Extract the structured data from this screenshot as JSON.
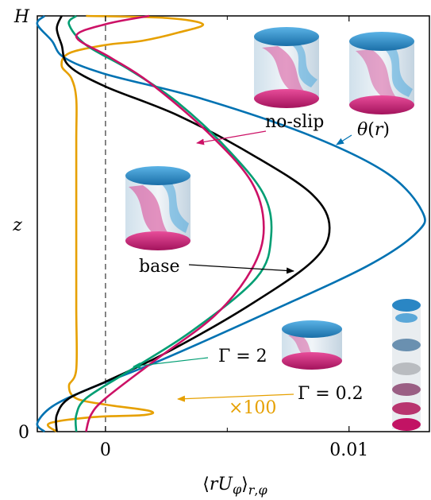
{
  "chart_data": {
    "type": "line",
    "xlabel": "⟨rU_φ⟩_{r,φ}",
    "ylabel": "z",
    "xlim": [
      -0.0028,
      0.0133
    ],
    "ylim": [
      0,
      1
    ],
    "x_ticks": [
      0,
      0.01
    ],
    "x_tick_labels": [
      "0",
      "0.01"
    ],
    "y_ticks": [
      0,
      1
    ],
    "y_tick_labels": [
      "0",
      "H"
    ],
    "zero_line": "dashed",
    "grid": false,
    "legend": "none",
    "series": [
      {
        "name": "θ(r)",
        "color": "#0072b2",
        "points": [
          [
            -0.0025,
            0.0
          ],
          [
            -0.0028,
            0.02
          ],
          [
            -0.0022,
            0.06
          ],
          [
            -0.0008,
            0.1
          ],
          [
            0.0022,
            0.17
          ],
          [
            0.0068,
            0.29
          ],
          [
            0.0108,
            0.4
          ],
          [
            0.0128,
            0.48
          ],
          [
            0.013,
            0.53
          ],
          [
            0.0116,
            0.62
          ],
          [
            0.0085,
            0.71
          ],
          [
            0.004,
            0.8
          ],
          [
            0.0,
            0.86
          ],
          [
            -0.0017,
            0.9
          ],
          [
            -0.0022,
            0.94
          ],
          [
            -0.0028,
            0.98
          ],
          [
            -0.0025,
            1.0
          ]
        ]
      },
      {
        "name": "base",
        "color": "#000000",
        "points": [
          [
            -0.002,
            0.0
          ],
          [
            -0.002,
            0.04
          ],
          [
            -0.0015,
            0.08
          ],
          [
            0.0,
            0.12
          ],
          [
            0.0025,
            0.19
          ],
          [
            0.0058,
            0.3
          ],
          [
            0.0085,
            0.41
          ],
          [
            0.0092,
            0.49
          ],
          [
            0.0085,
            0.57
          ],
          [
            0.0062,
            0.66
          ],
          [
            0.003,
            0.76
          ],
          [
            0.0,
            0.83
          ],
          [
            -0.0015,
            0.88
          ],
          [
            -0.0018,
            0.93
          ],
          [
            -0.002,
            0.97
          ],
          [
            -0.0018,
            1.0
          ]
        ]
      },
      {
        "name": "Γ = 2",
        "color": "#009e73",
        "points": [
          [
            -0.0012,
            0.0
          ],
          [
            -0.0012,
            0.04
          ],
          [
            -0.0008,
            0.08
          ],
          [
            0.0008,
            0.14
          ],
          [
            0.0035,
            0.24
          ],
          [
            0.0062,
            0.37
          ],
          [
            0.0068,
            0.47
          ],
          [
            0.0065,
            0.57
          ],
          [
            0.005,
            0.68
          ],
          [
            0.003,
            0.79
          ],
          [
            0.001,
            0.87
          ],
          [
            -0.0008,
            0.93
          ],
          [
            -0.0015,
            0.98
          ],
          [
            -0.0012,
            1.0
          ]
        ]
      },
      {
        "name": "no-slip",
        "color": "#cc1166",
        "points": [
          [
            -0.0008,
            0.0
          ],
          [
            -0.0006,
            0.04
          ],
          [
            0.0,
            0.08
          ],
          [
            0.002,
            0.17
          ],
          [
            0.0045,
            0.28
          ],
          [
            0.006,
            0.39
          ],
          [
            0.0065,
            0.49
          ],
          [
            0.006,
            0.6
          ],
          [
            0.0042,
            0.72
          ],
          [
            0.0018,
            0.84
          ],
          [
            0.0002,
            0.9
          ],
          [
            -0.0012,
            0.95
          ],
          [
            0.0,
            0.98
          ],
          [
            0.0018,
            1.0
          ]
        ]
      },
      {
        "name": "Γ = 0.2",
        "color": "#e6a000",
        "points": [
          [
            -0.002,
            0.0
          ],
          [
            -0.0023,
            0.02
          ],
          [
            -0.0005,
            0.035
          ],
          [
            0.0016,
            0.04
          ],
          [
            0.0018,
            0.05
          ],
          [
            0.0,
            0.065
          ],
          [
            -0.0012,
            0.08
          ],
          [
            -0.0015,
            0.11
          ],
          [
            -0.0012,
            0.15
          ],
          [
            -0.0012,
            0.3
          ],
          [
            -0.0012,
            0.5
          ],
          [
            -0.0012,
            0.7
          ],
          [
            -0.0012,
            0.8
          ],
          [
            -0.0014,
            0.85
          ],
          [
            -0.0018,
            0.88
          ],
          [
            -0.0015,
            0.91
          ],
          [
            0.0,
            0.93
          ],
          [
            0.0015,
            0.94
          ],
          [
            0.003,
            0.96
          ],
          [
            0.004,
            0.98
          ],
          [
            0.0025,
            0.995
          ],
          [
            -0.0008,
            1.0
          ]
        ]
      }
    ],
    "annotations": [
      {
        "text": "no-slip",
        "target": "no-slip"
      },
      {
        "text": "θ(r)",
        "target": "θ(r)"
      },
      {
        "text": "base",
        "target": "base"
      },
      {
        "text": "Γ = 2",
        "target": "Γ = 2"
      },
      {
        "text": "Γ = 0.2",
        "target": "Γ = 0.2"
      },
      {
        "text": "×100",
        "target": "Γ = 0.2",
        "color": "#e6a000"
      }
    ]
  }
}
